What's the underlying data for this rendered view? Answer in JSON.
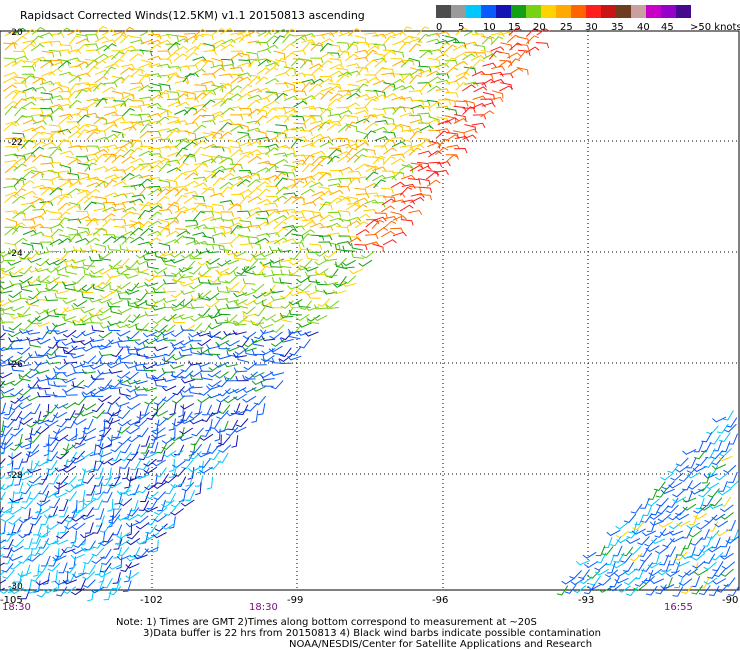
{
  "title": "Rapidsact Corrected Winds(12.5KM) v1.1 20150813 ascending",
  "legend": {
    "colors": [
      "#4d4d4d",
      "#9a9a9a",
      "#00c8ff",
      "#0a5bff",
      "#1414b4",
      "#14a014",
      "#78d214",
      "#ffd200",
      "#ffaa00",
      "#ff6400",
      "#ff1e1e",
      "#c81414",
      "#6e3c1e",
      "#c8a0a0",
      "#c800c8",
      "#9600c8",
      "#460a8c"
    ],
    "labels": [
      "0",
      "5",
      "10",
      "15",
      "20",
      "25",
      "30",
      "35",
      "40",
      "45",
      ">50 knots"
    ]
  },
  "axes": {
    "lon_labels": [
      "-105",
      "-102",
      "-99",
      "-96",
      "-93",
      "-90"
    ],
    "lat_labels": [
      "-20",
      "-22",
      "-24",
      "-26",
      "-28",
      "-30"
    ]
  },
  "times": {
    "left": "18:30",
    "mid": "18:30",
    "right": "16:55"
  },
  "notes": {
    "line1": "Note: 1) Times are GMT 2)Times along bottom correspond to measurement at ~20S",
    "line2": "3)Data buffer is 22 hrs from 20150813 4) Black wind barbs indicate possible contamination",
    "line3": "NOAA/NESDIS/Center for Satellite Applications and Research"
  }
}
